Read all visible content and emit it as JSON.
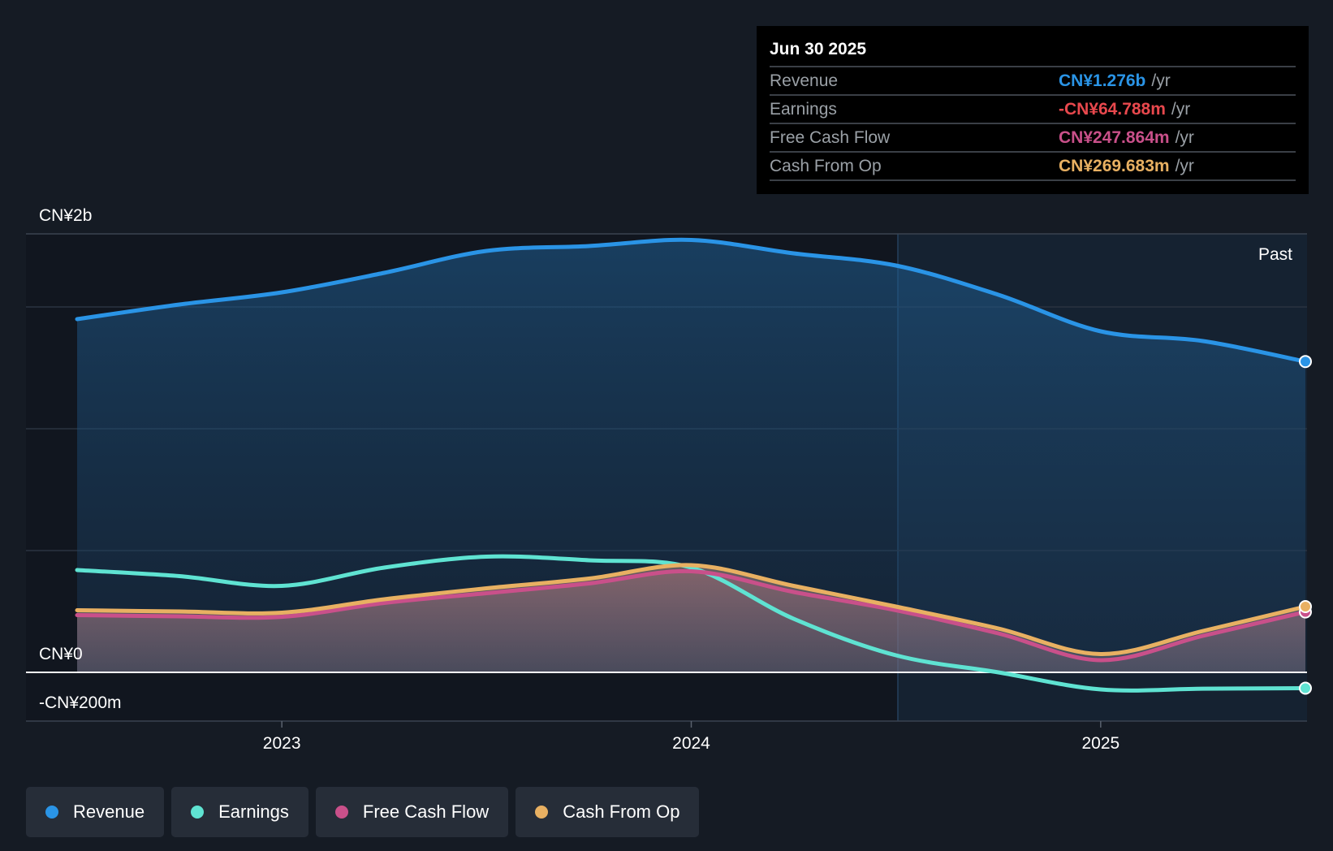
{
  "tooltip": {
    "date": "Jun 30 2025",
    "rows": [
      {
        "label": "Revenue",
        "value": "CN¥1.276b",
        "unit": "/yr",
        "color": "#2a94e6"
      },
      {
        "label": "Earnings",
        "value": "-CN¥64.788m",
        "unit": "/yr",
        "color": "#e8484d"
      },
      {
        "label": "Free Cash Flow",
        "value": "CN¥247.864m",
        "unit": "/yr",
        "color": "#c9508a"
      },
      {
        "label": "Cash From Op",
        "value": "CN¥269.683m",
        "unit": "/yr",
        "color": "#e8b062"
      }
    ]
  },
  "legend": [
    {
      "label": "Revenue",
      "color": "#2a94e6"
    },
    {
      "label": "Earnings",
      "color": "#5fe3d2"
    },
    {
      "label": "Free Cash Flow",
      "color": "#c9508a"
    },
    {
      "label": "Cash From Op",
      "color": "#e8b062"
    }
  ],
  "chart_data": {
    "type": "area",
    "title": "",
    "y_tick_labels": [
      "CN¥2b",
      "CN¥0",
      "-CN¥200m"
    ],
    "past_label": "Past",
    "ylim": [
      -200,
      1800
    ],
    "xlim": [
      2022.5,
      2025.5
    ],
    "x_tick_labels": [
      "2023",
      "2024",
      "2025"
    ],
    "x_tick_values": [
      2023.0,
      2024.0,
      2025.0
    ],
    "past_start": 2024.5,
    "series": [
      {
        "name": "Revenue",
        "color": "#2a94e6",
        "x": [
          2022.5,
          2022.75,
          2023.0,
          2023.25,
          2023.5,
          2023.75,
          2024.0,
          2024.25,
          2024.5,
          2024.75,
          2025.0,
          2025.25,
          2025.5
        ],
        "values": [
          1450,
          1510,
          1560,
          1640,
          1730,
          1750,
          1775,
          1720,
          1670,
          1550,
          1400,
          1360,
          1276
        ]
      },
      {
        "name": "Earnings",
        "color": "#5fe3d2",
        "x": [
          2022.5,
          2022.75,
          2023.0,
          2023.25,
          2023.5,
          2023.75,
          2024.0,
          2024.25,
          2024.5,
          2024.75,
          2025.0,
          2025.25,
          2025.5
        ],
        "values": [
          420,
          395,
          355,
          430,
          475,
          460,
          430,
          220,
          70,
          0,
          -70,
          -67,
          -65
        ]
      },
      {
        "name": "Free Cash Flow",
        "color": "#c9508a",
        "x": [
          2022.5,
          2022.75,
          2023.0,
          2023.25,
          2023.5,
          2023.75,
          2024.0,
          2024.25,
          2024.5,
          2024.75,
          2025.0,
          2025.25,
          2025.5
        ],
        "values": [
          235,
          230,
          228,
          285,
          325,
          365,
          415,
          330,
          255,
          160,
          50,
          150,
          248
        ]
      },
      {
        "name": "Cash From Op",
        "color": "#e8b062",
        "x": [
          2022.5,
          2022.75,
          2023.0,
          2023.25,
          2023.5,
          2023.75,
          2024.0,
          2024.25,
          2024.5,
          2024.75,
          2025.0,
          2025.25,
          2025.5
        ],
        "values": [
          255,
          250,
          245,
          300,
          345,
          385,
          440,
          355,
          270,
          180,
          75,
          170,
          270
        ]
      }
    ]
  }
}
